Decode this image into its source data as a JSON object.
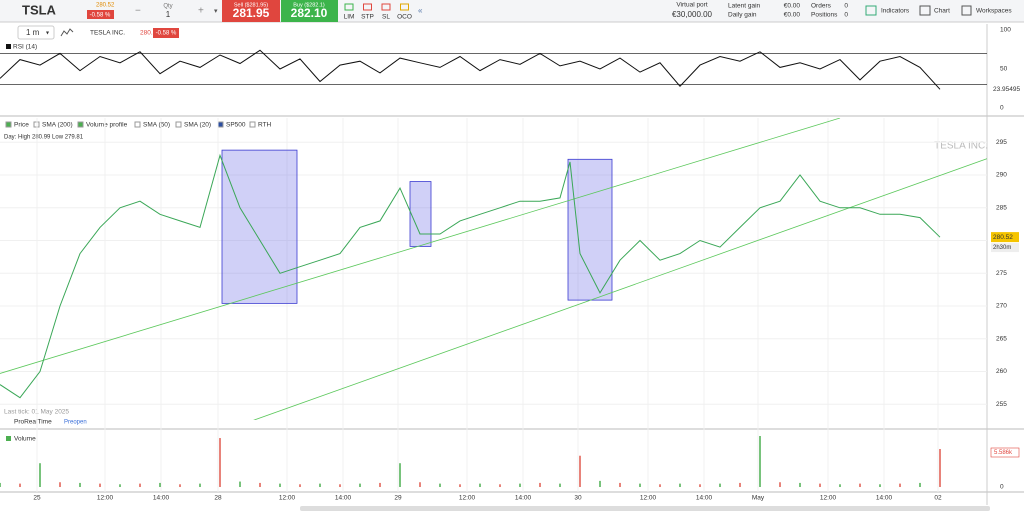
{
  "toolbar": {
    "symbol": "TSLA",
    "price": "280.52",
    "change": "-0.58 %",
    "qty_label": "Qty",
    "qty": "1",
    "sell_label": "Sell ($281.95)",
    "sell_price": "281.95",
    "buy_label": "Buy ($282.1)",
    "buy_price": "282.10",
    "orders": [
      "LIM",
      "STP",
      "SL",
      "OCO"
    ],
    "virtual_port_label": "Virtual port",
    "virtual_port": "€30,000.00",
    "latent_gain_label": "Latent gain",
    "latent_gain": "€0.00",
    "daily_gain_label": "Daily gain",
    "daily_gain": "€0.00",
    "orders_label": "Orders",
    "orders_count": "0",
    "positions_label": "Positions",
    "positions_count": "0",
    "indicators": "Indicators",
    "chart": "Chart",
    "workspaces": "Workspaces"
  },
  "chart_header": {
    "timeframe": "1 m",
    "instrument": "TESLA INC.",
    "price": "280.52",
    "change": "-0.58 %"
  },
  "rsi": {
    "type": "line",
    "label": "RSI (14)",
    "color": "#111111",
    "x": [
      0,
      2,
      4,
      6,
      8,
      10,
      12,
      14,
      16,
      18,
      20,
      22,
      24,
      26,
      28,
      30,
      32,
      34,
      36,
      38,
      40,
      42,
      44,
      46,
      48,
      50,
      52,
      54,
      56,
      58,
      60,
      62,
      64,
      66,
      68,
      70,
      72,
      74,
      76,
      78,
      80,
      82,
      84,
      86,
      88,
      90,
      92,
      94
    ],
    "values": [
      38,
      62,
      55,
      70,
      48,
      66,
      58,
      72,
      44,
      60,
      52,
      68,
      57,
      74,
      50,
      63,
      34,
      55,
      60,
      45,
      64,
      58,
      52,
      66,
      48,
      62,
      56,
      70,
      54,
      60,
      50,
      64,
      46,
      58,
      28,
      55,
      66,
      60,
      72,
      52,
      58,
      50,
      62,
      36,
      60,
      66,
      52,
      23.95495
    ],
    "ylim": [
      0,
      100
    ],
    "yticks": [
      0,
      50,
      100
    ],
    "levels": [
      30,
      70
    ]
  },
  "price": {
    "type": "line",
    "color": "#3aa757",
    "legend": [
      "Price",
      "SMA (200)",
      "Volume profile",
      "SMA (50)",
      "SMA (20)",
      "SP500",
      "RTH"
    ],
    "day_range": "Day: High 280.99 Low 279.81",
    "watermark": "TESLA INC.",
    "x": [
      0,
      2,
      4,
      6,
      8,
      10,
      12,
      14,
      16,
      18,
      20,
      22,
      24,
      26,
      28,
      30,
      32,
      34,
      36,
      38,
      40,
      42,
      44,
      46,
      48,
      50,
      52,
      54,
      56,
      57,
      58,
      60,
      62,
      64,
      66,
      68,
      70,
      72,
      74,
      76,
      78,
      80,
      82,
      84,
      86,
      88,
      90,
      92,
      94
    ],
    "values": [
      258,
      256,
      260,
      270,
      278,
      282,
      285,
      286,
      284,
      283,
      282,
      293,
      285,
      280,
      275,
      276,
      277,
      278,
      282,
      283,
      288,
      281,
      281,
      283,
      284,
      285,
      286,
      286,
      286.5,
      292,
      278,
      272,
      277,
      280,
      277,
      278,
      280,
      279,
      282,
      285,
      286,
      290,
      286,
      285,
      285,
      284,
      284,
      283.5,
      280.5
    ],
    "ylim": [
      252.9,
      298.4
    ],
    "yticks": [
      255,
      260,
      265,
      270,
      275,
      280,
      285,
      290,
      295
    ],
    "trendlines": [
      {
        "x": [
          0,
          84
        ],
        "y": [
          259.7,
          298.7
        ]
      },
      {
        "x": [
          22.5,
          102.4
        ],
        "y": [
          251,
          294.5
        ]
      }
    ],
    "boxes": [
      {
        "x": [
          22.2,
          29.7
        ],
        "y": [
          270.4,
          293.8
        ]
      },
      {
        "x": [
          41,
          43.1
        ],
        "y": [
          279.1,
          289
        ]
      },
      {
        "x": [
          56.8,
          61.2
        ],
        "y": [
          270.9,
          292.4
        ]
      }
    ],
    "last_price": 280.52,
    "countdown": "2h30m",
    "last_tick": "Last tick: 01 May 2025",
    "brand": "ProRealTime",
    "session": "Preopen"
  },
  "volume": {
    "type": "bar",
    "label": "Volume",
    "color": "#4caf50",
    "last_label": "5.586k",
    "x": [
      0,
      2,
      4,
      6,
      8,
      10,
      12,
      14,
      16,
      18,
      20,
      22,
      24,
      26,
      28,
      30,
      32,
      34,
      36,
      38,
      40,
      42,
      44,
      46,
      48,
      50,
      52,
      54,
      56,
      58,
      60,
      62,
      64,
      66,
      68,
      70,
      72,
      74,
      76,
      78,
      80,
      82,
      84,
      86,
      88,
      90,
      92,
      94
    ],
    "values": [
      0.6,
      0.5,
      3.5,
      0.7,
      0.6,
      0.5,
      0.4,
      0.5,
      0.6,
      0.4,
      0.5,
      7.2,
      0.8,
      0.6,
      0.5,
      0.4,
      0.5,
      0.4,
      0.5,
      0.6,
      3.5,
      0.7,
      0.5,
      0.4,
      0.5,
      0.4,
      0.5,
      0.6,
      0.5,
      4.6,
      0.9,
      0.6,
      0.5,
      0.4,
      0.5,
      0.4,
      0.5,
      0.6,
      7.5,
      0.7,
      0.6,
      0.5,
      0.4,
      0.5,
      0.4,
      0.5,
      0.6,
      5.586
    ],
    "ylim": [
      0,
      7.5
    ],
    "yticks": [
      0,
      5
    ]
  },
  "xaxis": {
    "xlim": [
      0,
      98.5
    ],
    "xticks": [
      {
        "value": 3.7,
        "label": "25"
      },
      {
        "value": 10.5,
        "label": "12:00"
      },
      {
        "value": 16.1,
        "label": "14:00"
      },
      {
        "value": 21.8,
        "label": "28"
      },
      {
        "value": 28.7,
        "label": "12:00"
      },
      {
        "value": 34.3,
        "label": "14:00"
      },
      {
        "value": 39.8,
        "label": "29"
      },
      {
        "value": 46.7,
        "label": "12:00"
      },
      {
        "value": 52.3,
        "label": "14:00"
      },
      {
        "value": 57.8,
        "label": "30"
      },
      {
        "value": 64.8,
        "label": "12:00"
      },
      {
        "value": 70.4,
        "label": "14:00"
      },
      {
        "value": 75.8,
        "label": "May"
      },
      {
        "value": 82.8,
        "label": "12:00"
      },
      {
        "value": 88.4,
        "label": "14:00"
      },
      {
        "value": 93.8,
        "label": "02"
      }
    ]
  }
}
